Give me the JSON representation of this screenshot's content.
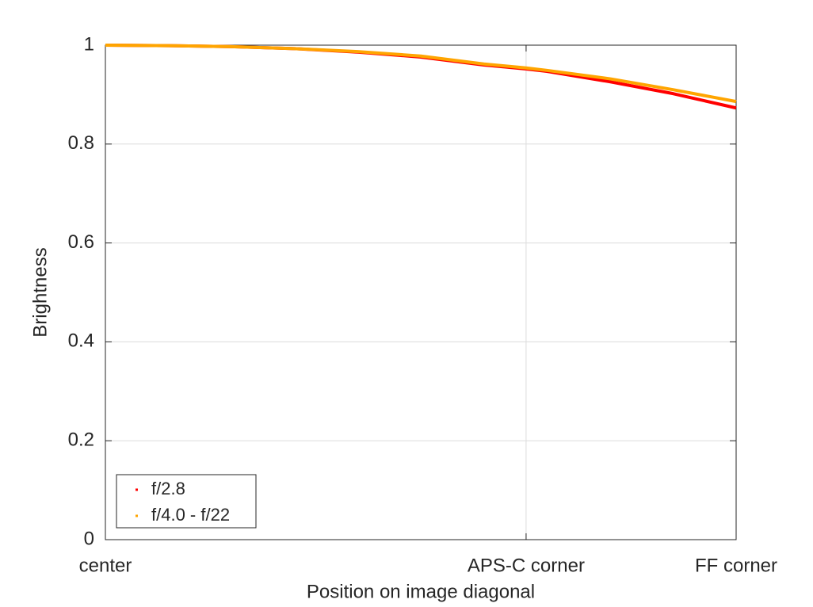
{
  "chart_data": {
    "type": "line",
    "xlabel": "Position on image diagonal",
    "ylabel": "Brightness",
    "x": [
      0,
      0.1,
      0.2,
      0.3,
      0.4,
      0.5,
      0.6,
      0.667,
      0.7,
      0.8,
      0.9,
      1
    ],
    "series": [
      {
        "name": "f/2.8",
        "color": "#ff0000",
        "values": [
          1,
          0.999,
          0.997,
          0.993,
          0.986,
          0.976,
          0.96,
          0.952,
          0.947,
          0.926,
          0.902,
          0.873
        ]
      },
      {
        "name": "f/4.0 - f/22",
        "color": "#ffa500",
        "values": [
          1,
          0.999,
          0.997,
          0.993,
          0.987,
          0.978,
          0.962,
          0.954,
          0.949,
          0.932,
          0.91,
          0.886
        ]
      }
    ],
    "xlim": [
      0,
      1
    ],
    "xticks": [
      {
        "value": 0,
        "label": "center"
      },
      {
        "value": 0.667,
        "label": "APS-C corner"
      },
      {
        "value": 1,
        "label": "FF corner"
      }
    ],
    "ylim": [
      0,
      1
    ],
    "yticks": [
      0,
      0.2,
      0.4,
      0.6,
      0.8,
      1
    ],
    "grid": true,
    "legend": "lower-left"
  }
}
